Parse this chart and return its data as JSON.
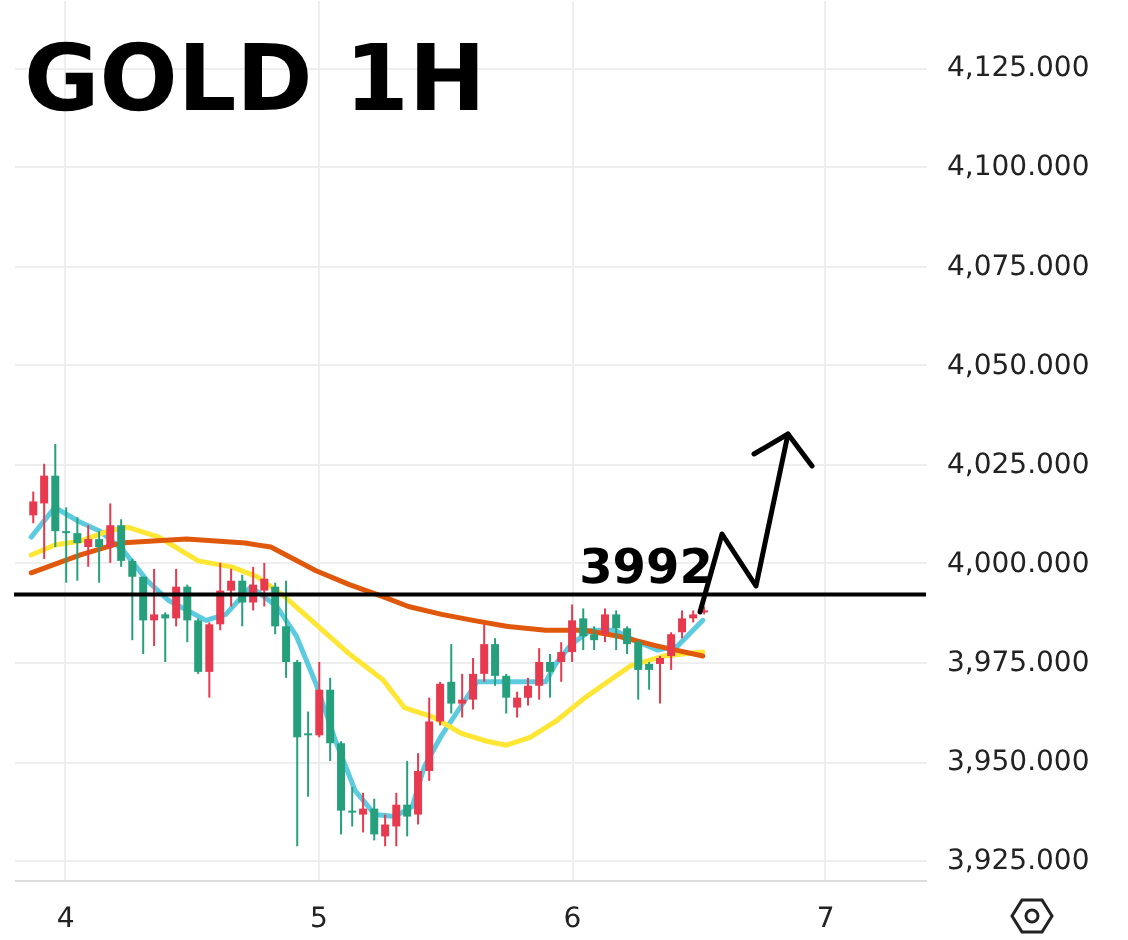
{
  "chart_data": {
    "type": "candlestick",
    "title": "GOLD 1H",
    "x": [
      3.876,
      3.919,
      3.963,
      4.006,
      4.05,
      4.093,
      4.136,
      4.18,
      4.223,
      4.267,
      4.31,
      4.353,
      4.397,
      4.44,
      4.484,
      4.527,
      4.571,
      4.614,
      4.657,
      4.701,
      4.744,
      4.788,
      4.831,
      4.874,
      4.918,
      4.961,
      5.005,
      5.048,
      5.091,
      5.135,
      5.178,
      5.222,
      5.265,
      5.309,
      5.352,
      5.395,
      5.439,
      5.482,
      5.526,
      5.569,
      5.612,
      5.656,
      5.699,
      5.743,
      5.786,
      5.829,
      5.873,
      5.916,
      5.96,
      6.003,
      6.047,
      6.09,
      6.133,
      6.177,
      6.22,
      6.264,
      6.307,
      6.35,
      6.394,
      6.437,
      6.481,
      6.524
    ],
    "ohlc": [
      [
        4012,
        4018,
        4010,
        4015.5
      ],
      [
        4015,
        4025,
        4001,
        4022
      ],
      [
        4022,
        4030,
        4004,
        4008
      ],
      [
        4008,
        4014,
        3995,
        4007.5
      ],
      [
        4007.5,
        4011.5,
        3995.5,
        4005
      ],
      [
        4004,
        4009.5,
        3999,
        4006
      ],
      [
        4006,
        4008,
        3995,
        4004
      ],
      [
        4004,
        4015,
        4000,
        4009.5
      ],
      [
        4009.5,
        4011,
        3999,
        4000.5
      ],
      [
        4000.5,
        4001,
        3980.5,
        3996.5
      ],
      [
        3996.5,
        3996.5,
        3977,
        3985.5
      ],
      [
        3985.5,
        3998.5,
        3979,
        3987
      ],
      [
        3987,
        3987.5,
        3975,
        3986
      ],
      [
        3986,
        3998.5,
        3984,
        3994
      ],
      [
        3994,
        3994.5,
        3980,
        3985.5
      ],
      [
        3985.5,
        3986,
        3972,
        3972.5
      ],
      [
        3972.5,
        3985,
        3966,
        3984.5
      ],
      [
        3984.5,
        4000,
        3983,
        3993
      ],
      [
        3993,
        3998.5,
        3989,
        3995.5
      ],
      [
        3995.5,
        3997,
        3984,
        3990
      ],
      [
        3990,
        3999,
        3988,
        3994.5
      ],
      [
        3993,
        4000,
        3989,
        3996
      ],
      [
        3994,
        3995,
        3982,
        3984
      ],
      [
        3984,
        3995.5,
        3971,
        3975
      ],
      [
        3975,
        3975.5,
        3928.5,
        3956
      ],
      [
        3957,
        3962.5,
        3941,
        3956.5
      ],
      [
        3956.5,
        3975,
        3956,
        3968
      ],
      [
        3968,
        3971,
        3950,
        3954.5
      ],
      [
        3954.5,
        3955,
        3931.5,
        3937.5
      ],
      [
        3937.5,
        3943.5,
        3933.5,
        3937
      ],
      [
        3936.5,
        3942,
        3932,
        3938
      ],
      [
        3938,
        3940.5,
        3930,
        3931.5
      ],
      [
        3931,
        3936.5,
        3928.5,
        3934
      ],
      [
        3933.5,
        3942,
        3928.5,
        3939
      ],
      [
        3939,
        3950,
        3931,
        3936
      ],
      [
        3936.5,
        3952,
        3934,
        3947.5
      ],
      [
        3947.5,
        3966,
        3945,
        3960
      ],
      [
        3960,
        3970,
        3959,
        3969.5
      ],
      [
        3970,
        3979.5,
        3962,
        3964.5
      ],
      [
        3964.5,
        3972,
        3961,
        3965.5
      ],
      [
        3965.5,
        3976,
        3963,
        3972
      ],
      [
        3972,
        3984.5,
        3970,
        3979.5
      ],
      [
        3979.5,
        3981,
        3969,
        3971.5
      ],
      [
        3971.5,
        3972,
        3962,
        3966
      ],
      [
        3963.5,
        3967.5,
        3961,
        3966
      ],
      [
        3966,
        3971,
        3964,
        3969
      ],
      [
        3969,
        3978.5,
        3965.5,
        3975
      ],
      [
        3975,
        3977,
        3966,
        3972.5
      ],
      [
        3975,
        3980,
        3970,
        3977.5
      ],
      [
        3977.5,
        3989.5,
        3975,
        3985.5
      ],
      [
        3986,
        3988.5,
        3978,
        3981.5
      ],
      [
        3982,
        3984,
        3978,
        3980.5
      ],
      [
        3982,
        3988.5,
        3980,
        3987
      ],
      [
        3987,
        3988,
        3978,
        3983.5
      ],
      [
        3983.5,
        3984,
        3977,
        3979.5
      ],
      [
        3980,
        3980.5,
        3965.5,
        3973
      ],
      [
        3974.5,
        3975,
        3968,
        3973
      ],
      [
        3974.5,
        3976.5,
        3964.5,
        3976
      ],
      [
        3976.5,
        3982.5,
        3973,
        3982
      ],
      [
        3982.5,
        3988,
        3981,
        3986
      ],
      [
        3986,
        3988,
        3985,
        3987
      ],
      [
        3987.5,
        3989,
        3987,
        3988
      ]
    ],
    "colors": [
      "#e83a4f",
      "#e83a4f",
      "#26a07c",
      "#26a07c",
      "#26a07c",
      "#e83a4f",
      "#26a07c",
      "#e83a4f",
      "#26a07c",
      "#26a07c",
      "#26a07c",
      "#e83a4f",
      "#26a07c",
      "#e83a4f",
      "#26a07c",
      "#26a07c",
      "#e83a4f",
      "#e83a4f",
      "#e83a4f",
      "#26a07c",
      "#e83a4f",
      "#e83a4f",
      "#26a07c",
      "#26a07c",
      "#26a07c",
      "#26a07c",
      "#e83a4f",
      "#26a07c",
      "#26a07c",
      "#26a07c",
      "#e83a4f",
      "#26a07c",
      "#e83a4f",
      "#e83a4f",
      "#26a07c",
      "#e83a4f",
      "#e83a4f",
      "#e83a4f",
      "#26a07c",
      "#e83a4f",
      "#e83a4f",
      "#e83a4f",
      "#26a07c",
      "#26a07c",
      "#e83a4f",
      "#e83a4f",
      "#e83a4f",
      "#26a07c",
      "#e83a4f",
      "#e83a4f",
      "#26a07c",
      "#26a07c",
      "#e83a4f",
      "#26a07c",
      "#26a07c",
      "#26a07c",
      "#26a07c",
      "#e83a4f",
      "#e83a4f",
      "#e83a4f",
      "#e83a4f",
      "#e83a4f"
    ],
    "series": [
      {
        "type": "line",
        "color": "#5ccbe0",
        "x": [
          3.868,
          3.961,
          4.054,
          4.14,
          4.233,
          4.326,
          4.411,
          4.558,
          4.636,
          4.736,
          4.837,
          4.915,
          4.992,
          5.07,
          5.147,
          5.225,
          5.302,
          5.372,
          5.419,
          5.488,
          5.566,
          5.628,
          5.744,
          5.899,
          5.938,
          6.0,
          6.078,
          6.171,
          6.248,
          6.341,
          6.419,
          6.519
        ],
        "values": [
          4006.5,
          4014,
          4010.5,
          4008,
          4003,
          3995.5,
          3990.5,
          3985.5,
          3987,
          3994,
          3989,
          3981.5,
          3969.5,
          3955,
          3942.5,
          3936.5,
          3936,
          3938.5,
          3948.5,
          3956.5,
          3964,
          3970,
          3970,
          3970,
          3974.5,
          3979.5,
          3983,
          3983,
          3980.5,
          3978,
          3979,
          3985.5
        ]
      },
      {
        "type": "line",
        "color": "#ffe634",
        "x": [
          3.868,
          3.961,
          4.062,
          4.171,
          4.248,
          4.372,
          4.527,
          4.659,
          4.76,
          4.868,
          4.992,
          5.124,
          5.256,
          5.341,
          5.457,
          5.566,
          5.667,
          5.744,
          5.837,
          5.938,
          6.054,
          6.132,
          6.233,
          6.364,
          6.519
        ],
        "values": [
          4002,
          4004.5,
          4005.5,
          4008,
          4009,
          4006.5,
          4000.5,
          3999,
          3996.5,
          3991.5,
          3984.5,
          3977,
          3970.5,
          3963.5,
          3961,
          3957,
          3955,
          3954,
          3956,
          3960,
          3966,
          3969.5,
          3974,
          3976.5,
          3977.5
        ]
      },
      {
        "type": "line",
        "color": "#e0580c",
        "x": [
          3.868,
          4.062,
          4.217,
          4.481,
          4.713,
          4.814,
          4.992,
          5.124,
          5.256,
          5.357,
          5.488,
          5.612,
          5.744,
          5.899,
          6.054,
          6.186,
          6.341,
          6.519
        ],
        "values": [
          3997.5,
          4002,
          4005,
          4006,
          4005,
          4004,
          3998,
          3994.5,
          3991.5,
          3989,
          3987,
          3985.5,
          3984,
          3983,
          3983,
          3981.5,
          3979,
          3976.5
        ]
      }
    ],
    "xlim": [
      3.8,
      7.4
    ],
    "xticks": [
      4,
      5,
      6,
      7
    ],
    "ylim": [
      3920,
      4142
    ],
    "yticks": [
      {
        "value": 3925,
        "label": "3,925.000"
      },
      {
        "value": 3950,
        "label": "3,950.000"
      },
      {
        "value": 3975,
        "label": "3,975.000"
      },
      {
        "value": 4000,
        "label": "4,000.000"
      },
      {
        "value": 4025,
        "label": "4,025.000"
      },
      {
        "value": 4050,
        "label": "4,050.000"
      },
      {
        "value": 4075,
        "label": "4,075.000"
      },
      {
        "value": 4100,
        "label": "4,100.000"
      },
      {
        "value": 4125,
        "label": "4,125.000"
      }
    ],
    "ref_lines": [
      {
        "axis": "y",
        "value": 3992,
        "label": "3992",
        "color": "#000000"
      }
    ],
    "grid": true
  }
}
